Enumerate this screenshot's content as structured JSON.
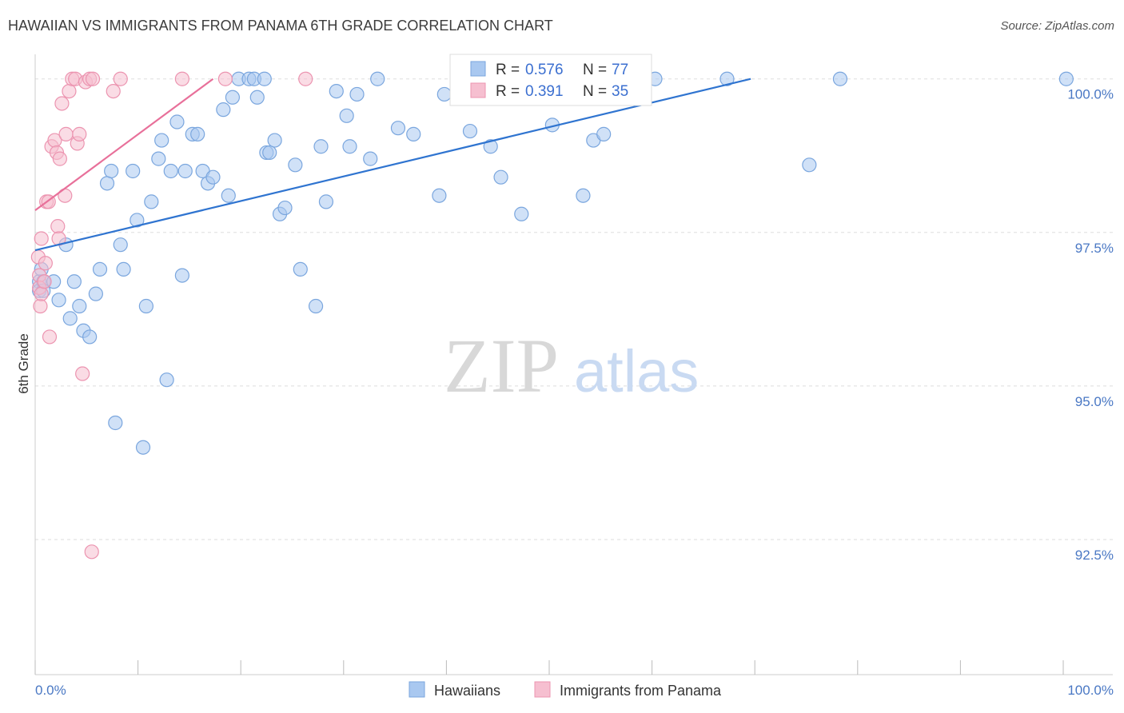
{
  "title": "HAWAIIAN VS IMMIGRANTS FROM PANAMA 6TH GRADE CORRELATION CHART",
  "source": "Source: ZipAtlas.com",
  "watermark": {
    "zip": "ZIP",
    "atlas": "atlas"
  },
  "chart_data": {
    "type": "scatter",
    "ylabel": "6th Grade",
    "xlim": [
      0,
      100
    ],
    "ylim": [
      90.3,
      100.4
    ],
    "x_tick_labels": [
      "0.0%",
      "100.0%"
    ],
    "y_ticks": [
      {
        "value": 100.0,
        "label": "100.0%"
      },
      {
        "value": 97.5,
        "label": "97.5%"
      },
      {
        "value": 95.0,
        "label": "95.0%"
      },
      {
        "value": 92.5,
        "label": "92.5%"
      }
    ],
    "legend": [
      {
        "r_label": "R =",
        "r_value": "0.576",
        "n_label": "N =",
        "n_value": "77"
      },
      {
        "r_label": "R =",
        "r_value": "0.391",
        "n_label": "N =",
        "n_value": "35"
      }
    ],
    "series": [
      {
        "name": "Hawaiians",
        "color": "#a9c8f0",
        "stroke": "#7aa6de",
        "line_color": "#2f74d0",
        "trend": {
          "x0": 0,
          "y0": 97.21,
          "x1": 69.6,
          "y1": 100.0
        },
        "points": [
          [
            0.4,
            96.7
          ],
          [
            0.4,
            96.55
          ],
          [
            0.6,
            96.9
          ],
          [
            0.8,
            96.7
          ],
          [
            0.8,
            96.55
          ],
          [
            1.8,
            96.7
          ],
          [
            2.3,
            96.4
          ],
          [
            3.0,
            97.3
          ],
          [
            3.4,
            96.1
          ],
          [
            3.8,
            96.7
          ],
          [
            4.3,
            96.3
          ],
          [
            4.7,
            95.9
          ],
          [
            5.3,
            95.8
          ],
          [
            5.9,
            96.5
          ],
          [
            6.3,
            96.9
          ],
          [
            7.0,
            98.3
          ],
          [
            7.4,
            98.5
          ],
          [
            7.8,
            94.4
          ],
          [
            8.3,
            97.3
          ],
          [
            8.6,
            96.9
          ],
          [
            9.5,
            98.5
          ],
          [
            9.9,
            97.7
          ],
          [
            10.5,
            94.0
          ],
          [
            10.8,
            96.3
          ],
          [
            11.3,
            98.0
          ],
          [
            12.0,
            98.7
          ],
          [
            12.3,
            99.0
          ],
          [
            12.8,
            95.1
          ],
          [
            13.2,
            98.5
          ],
          [
            13.8,
            99.3
          ],
          [
            14.3,
            96.8
          ],
          [
            14.6,
            98.5
          ],
          [
            15.3,
            99.1
          ],
          [
            15.8,
            99.1
          ],
          [
            16.3,
            98.5
          ],
          [
            16.8,
            98.3
          ],
          [
            17.3,
            98.4
          ],
          [
            18.3,
            99.5
          ],
          [
            18.8,
            98.1
          ],
          [
            19.2,
            99.7
          ],
          [
            19.8,
            100.0
          ],
          [
            20.8,
            100.0
          ],
          [
            21.3,
            100.0
          ],
          [
            21.6,
            99.7
          ],
          [
            22.3,
            100.0
          ],
          [
            22.5,
            98.8
          ],
          [
            22.8,
            98.8
          ],
          [
            23.3,
            99.0
          ],
          [
            23.8,
            97.8
          ],
          [
            24.3,
            97.9
          ],
          [
            25.3,
            98.6
          ],
          [
            25.8,
            96.9
          ],
          [
            27.3,
            96.3
          ],
          [
            27.8,
            98.9
          ],
          [
            28.3,
            98.0
          ],
          [
            29.3,
            99.8
          ],
          [
            30.3,
            99.4
          ],
          [
            30.6,
            98.9
          ],
          [
            31.3,
            99.75
          ],
          [
            32.6,
            98.7
          ],
          [
            33.3,
            100.0
          ],
          [
            35.3,
            99.2
          ],
          [
            36.8,
            99.1
          ],
          [
            39.3,
            98.1
          ],
          [
            39.8,
            99.75
          ],
          [
            42.3,
            99.15
          ],
          [
            44.3,
            98.9
          ],
          [
            45.3,
            98.4
          ],
          [
            47.3,
            97.8
          ],
          [
            50.3,
            99.25
          ],
          [
            50.8,
            100.0
          ],
          [
            53.3,
            98.1
          ],
          [
            54.3,
            99.0
          ],
          [
            55.3,
            99.1
          ],
          [
            60.3,
            100.0
          ],
          [
            67.3,
            100.0
          ],
          [
            75.3,
            98.6
          ],
          [
            78.3,
            100.0
          ],
          [
            100.3,
            100.0
          ]
        ]
      },
      {
        "name": "Immigrants from Panama",
        "color": "#f6bfd0",
        "stroke": "#ec94b0",
        "line_color": "#e8709a",
        "trend": {
          "x0": 0,
          "y0": 97.86,
          "x1": 17.3,
          "y1": 100.0
        },
        "points": [
          [
            0.3,
            97.1
          ],
          [
            0.4,
            96.8
          ],
          [
            0.4,
            96.6
          ],
          [
            0.5,
            96.3
          ],
          [
            0.6,
            96.5
          ],
          [
            0.6,
            97.4
          ],
          [
            0.9,
            96.7
          ],
          [
            1.0,
            97.0
          ],
          [
            1.1,
            98.0
          ],
          [
            1.3,
            98.0
          ],
          [
            1.4,
            95.8
          ],
          [
            1.6,
            98.9
          ],
          [
            1.9,
            99.0
          ],
          [
            2.1,
            98.8
          ],
          [
            2.2,
            97.6
          ],
          [
            2.3,
            97.4
          ],
          [
            2.4,
            98.7
          ],
          [
            2.6,
            99.6
          ],
          [
            2.9,
            98.1
          ],
          [
            3.0,
            99.1
          ],
          [
            3.3,
            99.8
          ],
          [
            3.6,
            100.0
          ],
          [
            3.9,
            100.0
          ],
          [
            4.1,
            98.95
          ],
          [
            4.3,
            99.1
          ],
          [
            4.6,
            95.2
          ],
          [
            4.9,
            99.95
          ],
          [
            5.3,
            100.0
          ],
          [
            5.6,
            100.0
          ],
          [
            7.6,
            99.8
          ],
          [
            8.3,
            100.0
          ],
          [
            14.3,
            100.0
          ],
          [
            18.5,
            100.0
          ],
          [
            26.3,
            100.0
          ],
          [
            5.5,
            92.3
          ]
        ]
      }
    ]
  }
}
